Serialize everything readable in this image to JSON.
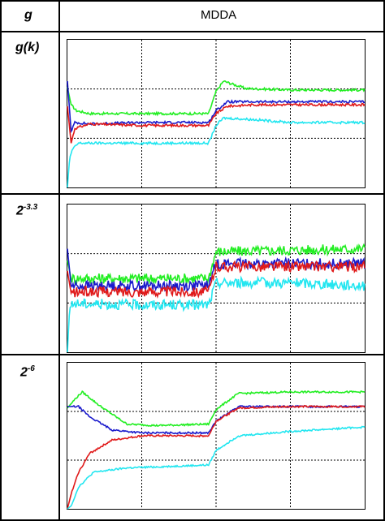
{
  "table": {
    "header": {
      "col1": "g",
      "col2": "MDDA"
    },
    "rows": [
      {
        "label_main": "g(k)",
        "label_exp": ""
      },
      {
        "label_main": "2",
        "label_exp": "-3.3"
      },
      {
        "label_main": "2",
        "label_exp": "-6"
      }
    ]
  },
  "colors": {
    "green": "#22ee22",
    "blue": "#1a1acc",
    "red": "#e01a1a",
    "cyan": "#22e6f0",
    "grid": "#000000"
  },
  "chart_data": [
    {
      "type": "line",
      "panel": "g(k)",
      "xlim": [
        0,
        4
      ],
      "ylim": [
        0,
        1
      ],
      "grid": true,
      "series": [
        {
          "color": "green",
          "x": [
            0,
            0.05,
            0.12,
            0.3,
            1.0,
            1.9,
            2.0,
            2.1,
            2.4,
            3.0,
            4.0
          ],
          "values": [
            0.68,
            0.56,
            0.52,
            0.5,
            0.5,
            0.5,
            0.65,
            0.72,
            0.67,
            0.66,
            0.66
          ]
        },
        {
          "color": "blue",
          "x": [
            0,
            0.05,
            0.1,
            0.3,
            1.0,
            1.9,
            2.0,
            2.15,
            2.5,
            3.0,
            4.0
          ],
          "values": [
            0.72,
            0.38,
            0.44,
            0.43,
            0.44,
            0.44,
            0.52,
            0.58,
            0.58,
            0.58,
            0.58
          ]
        },
        {
          "color": "red",
          "x": [
            0,
            0.05,
            0.1,
            0.3,
            1.0,
            1.9,
            2.0,
            2.15,
            2.5,
            3.0,
            4.0
          ],
          "values": [
            0.55,
            0.3,
            0.4,
            0.43,
            0.42,
            0.42,
            0.5,
            0.55,
            0.56,
            0.56,
            0.56
          ]
        },
        {
          "color": "cyan",
          "x": [
            0,
            0.03,
            0.07,
            0.15,
            1.0,
            1.9,
            2.0,
            2.1,
            2.5,
            3.0,
            4.0
          ],
          "values": [
            0.0,
            0.2,
            0.26,
            0.3,
            0.3,
            0.3,
            0.42,
            0.47,
            0.46,
            0.44,
            0.44
          ]
        }
      ]
    },
    {
      "type": "line",
      "panel": "2^-3.3",
      "xlim": [
        0,
        4
      ],
      "ylim": [
        0,
        1
      ],
      "grid": true,
      "series": [
        {
          "color": "green",
          "x": [
            0,
            0.05,
            0.2,
            1.0,
            1.9,
            2.0,
            3.0,
            4.0
          ],
          "values": [
            0.62,
            0.5,
            0.5,
            0.5,
            0.5,
            0.68,
            0.69,
            0.7
          ]
        },
        {
          "color": "blue",
          "x": [
            0,
            0.05,
            0.2,
            1.0,
            1.9,
            2.0,
            3.0,
            4.0
          ],
          "values": [
            0.7,
            0.45,
            0.45,
            0.45,
            0.45,
            0.6,
            0.6,
            0.6
          ]
        },
        {
          "color": "red",
          "x": [
            0,
            0.05,
            0.2,
            1.0,
            1.9,
            2.0,
            3.0,
            4.0
          ],
          "values": [
            0.55,
            0.4,
            0.41,
            0.41,
            0.41,
            0.58,
            0.58,
            0.58
          ]
        },
        {
          "color": "cyan",
          "x": [
            0,
            0.03,
            0.1,
            1.0,
            1.9,
            2.0,
            3.0,
            4.0
          ],
          "values": [
            0.0,
            0.3,
            0.33,
            0.32,
            0.32,
            0.47,
            0.47,
            0.45
          ]
        }
      ]
    },
    {
      "type": "line",
      "panel": "2^-6",
      "xlim": [
        0,
        4
      ],
      "ylim": [
        0,
        1
      ],
      "grid": true,
      "series": [
        {
          "color": "green",
          "x": [
            0,
            0.1,
            0.2,
            0.45,
            0.8,
            1.2,
            1.9,
            2.0,
            2.3,
            3.0,
            4.0
          ],
          "values": [
            0.69,
            0.75,
            0.8,
            0.7,
            0.58,
            0.57,
            0.58,
            0.68,
            0.79,
            0.8,
            0.8
          ]
        },
        {
          "color": "blue",
          "x": [
            0,
            0.15,
            0.3,
            0.6,
            1.0,
            1.9,
            2.0,
            2.3,
            3.0,
            4.0
          ],
          "values": [
            0.7,
            0.7,
            0.63,
            0.54,
            0.52,
            0.52,
            0.6,
            0.7,
            0.7,
            0.7
          ]
        },
        {
          "color": "red",
          "x": [
            0,
            0.05,
            0.15,
            0.3,
            0.6,
            1.0,
            1.9,
            2.0,
            2.3,
            3.0,
            4.0
          ],
          "values": [
            0.0,
            0.1,
            0.25,
            0.38,
            0.47,
            0.5,
            0.5,
            0.6,
            0.69,
            0.7,
            0.7
          ]
        },
        {
          "color": "cyan",
          "x": [
            0,
            0.05,
            0.15,
            0.35,
            0.8,
            1.9,
            2.0,
            2.3,
            3.0,
            4.0
          ],
          "values": [
            0.0,
            0.02,
            0.15,
            0.25,
            0.28,
            0.3,
            0.4,
            0.5,
            0.53,
            0.56
          ]
        }
      ]
    }
  ]
}
